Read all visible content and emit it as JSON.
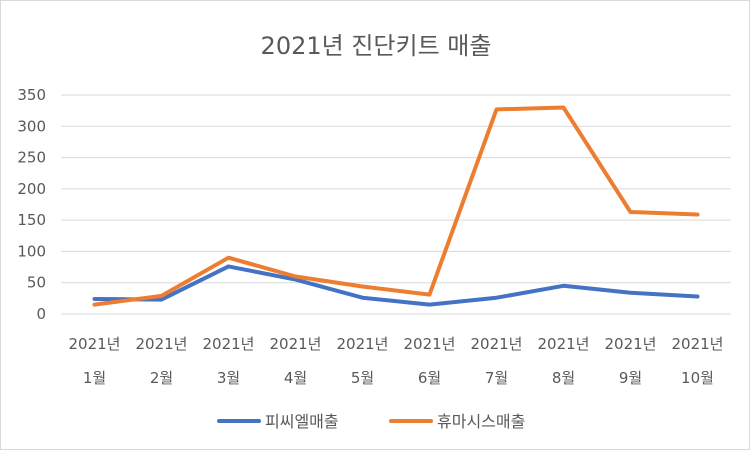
{
  "chart_data": {
    "type": "line",
    "title": "2021년 진단키트 매출",
    "categories": [
      [
        "2021년",
        "1월"
      ],
      [
        "2021년",
        "2월"
      ],
      [
        "2021년",
        "3월"
      ],
      [
        "2021년",
        "4월"
      ],
      [
        "2021년",
        "5월"
      ],
      [
        "2021년",
        "6월"
      ],
      [
        "2021년",
        "7월"
      ],
      [
        "2021년",
        "8월"
      ],
      [
        "2021년",
        "9월"
      ],
      [
        "2021년",
        "10월"
      ]
    ],
    "series": [
      {
        "name": "피씨엘매출",
        "color": "#4472c4",
        "values": [
          24,
          23,
          76,
          55,
          26,
          15,
          26,
          45,
          34,
          28
        ]
      },
      {
        "name": "휴마시스매출",
        "color": "#ed7d31",
        "values": [
          15,
          29,
          90,
          60,
          44,
          31,
          327,
          330,
          163,
          159
        ]
      }
    ],
    "yticks": [
      0,
      50,
      100,
      150,
      200,
      250,
      300,
      350
    ],
    "ylim": [
      0,
      350
    ],
    "grid": true,
    "legend": "bottom"
  }
}
